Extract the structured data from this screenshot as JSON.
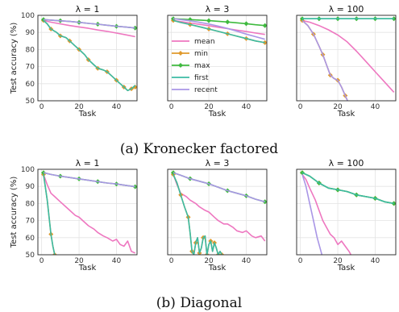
{
  "series_styles": [
    {
      "name": "mean",
      "color": "#ee77c0",
      "marker": "none"
    },
    {
      "name": "min",
      "color": "#e09a2c",
      "marker": "diamond"
    },
    {
      "name": "max",
      "color": "#3fba3f",
      "marker": "diamond"
    },
    {
      "name": "first",
      "color": "#3bbba4",
      "marker": "none"
    },
    {
      "name": "recent",
      "color": "#a996e6",
      "marker": "none"
    }
  ],
  "rows": [
    {
      "caption": "(a) Kronecker factored"
    },
    {
      "caption": "(b) Diagonal"
    }
  ],
  "chart_data": [
    {
      "type": "line",
      "row": 0,
      "col": 0,
      "title": "λ = 1",
      "xlabel": "Task",
      "ylabel": "Test accuracy (%)",
      "xlim": [
        -2,
        51
      ],
      "ylim": [
        50,
        100
      ],
      "xticks": [
        0,
        20,
        40
      ],
      "yticks": [
        50,
        60,
        70,
        80,
        90,
        100
      ],
      "grid": true,
      "legend": "none",
      "series": [
        {
          "name": "mean",
          "x": [
            1,
            5,
            10,
            15,
            20,
            25,
            30,
            35,
            40,
            45,
            50
          ],
          "y": [
            97,
            96,
            95,
            94,
            93.2,
            92.4,
            91.4,
            90.6,
            89.6,
            88.6,
            87.5
          ]
        },
        {
          "name": "min",
          "x": [
            1,
            3,
            5,
            8,
            10,
            13,
            15,
            18,
            20,
            23,
            25,
            28,
            30,
            33,
            35,
            38,
            40,
            42,
            44,
            46,
            48,
            50
          ],
          "y": [
            97,
            95,
            92,
            90,
            88,
            87,
            85,
            82,
            80,
            77,
            74,
            71,
            69,
            68,
            67,
            64,
            62,
            60,
            58,
            56,
            57,
            58
          ]
        },
        {
          "name": "max",
          "x": [
            1,
            5,
            10,
            15,
            20,
            25,
            30,
            35,
            40,
            45,
            50
          ],
          "y": [
            97.5,
            97.2,
            96.8,
            96.4,
            95.9,
            95.3,
            94.8,
            94.2,
            93.6,
            93.1,
            92.6
          ]
        },
        {
          "name": "first",
          "x": [
            1,
            3,
            5,
            8,
            10,
            13,
            15,
            18,
            20,
            23,
            25,
            28,
            30,
            33,
            35,
            38,
            40,
            42,
            44,
            46,
            48,
            50
          ],
          "y": [
            97,
            95,
            92,
            90,
            88,
            87,
            85,
            82,
            80,
            77,
            74,
            71,
            69,
            68,
            67,
            64,
            62,
            60,
            58,
            56,
            57,
            59
          ]
        },
        {
          "name": "recent",
          "x": [
            1,
            5,
            10,
            15,
            20,
            25,
            30,
            35,
            40,
            45,
            50
          ],
          "y": [
            97.5,
            97.2,
            96.8,
            96.4,
            95.9,
            95.3,
            94.8,
            94.2,
            93.6,
            93.1,
            92.6
          ]
        }
      ]
    },
    {
      "type": "line",
      "row": 0,
      "col": 1,
      "title": "λ = 3",
      "xlabel": "Task",
      "ylabel": "",
      "xlim": [
        -2,
        51
      ],
      "ylim": [
        50,
        100
      ],
      "xticks": [
        0,
        20,
        40
      ],
      "yticks": [
        50,
        60,
        70,
        80,
        90,
        100
      ],
      "grid": true,
      "legend": "center-left",
      "series": [
        {
          "name": "mean",
          "x": [
            1,
            5,
            10,
            15,
            20,
            25,
            30,
            35,
            40,
            45,
            50
          ],
          "y": [
            97,
            96.3,
            95.5,
            94.7,
            93.9,
            93,
            92.2,
            91.3,
            90.5,
            89.6,
            88.8
          ]
        },
        {
          "name": "min",
          "x": [
            1,
            5,
            10,
            15,
            20,
            25,
            30,
            35,
            40,
            45,
            50
          ],
          "y": [
            97,
            95.8,
            94.6,
            93.3,
            92,
            90.6,
            89.2,
            87.8,
            86.4,
            85,
            84
          ]
        },
        {
          "name": "max",
          "x": [
            1,
            5,
            10,
            15,
            20,
            25,
            30,
            35,
            40,
            45,
            50
          ],
          "y": [
            98,
            97.8,
            97.5,
            97.2,
            96.9,
            96.5,
            96.1,
            95.6,
            95.1,
            94.5,
            94
          ]
        },
        {
          "name": "first",
          "x": [
            1,
            5,
            10,
            15,
            20,
            25,
            30,
            35,
            40,
            45,
            50
          ],
          "y": [
            97,
            95.8,
            94.6,
            93.3,
            92,
            90.6,
            89.2,
            87.8,
            86.4,
            85,
            84
          ]
        },
        {
          "name": "recent",
          "x": [
            1,
            5,
            10,
            15,
            20,
            25,
            30,
            35,
            40,
            45,
            50
          ],
          "y": [
            98,
            97.5,
            96.8,
            95.9,
            94.9,
            93.7,
            92.3,
            90.7,
            89,
            87.5,
            86
          ]
        }
      ]
    },
    {
      "type": "line",
      "row": 0,
      "col": 2,
      "title": "λ = 100",
      "xlabel": "Task",
      "ylabel": "",
      "xlim": [
        -2,
        51
      ],
      "ylim": [
        50,
        100
      ],
      "xticks": [
        0,
        20,
        40
      ],
      "yticks": [
        50,
        60,
        70,
        80,
        90,
        100
      ],
      "grid": true,
      "legend": "none",
      "series": [
        {
          "name": "mean",
          "x": [
            1,
            5,
            10,
            15,
            20,
            25,
            30,
            35,
            40,
            45,
            50
          ],
          "y": [
            97,
            96,
            94,
            91.5,
            88.5,
            84.5,
            79,
            73,
            67,
            61,
            55
          ]
        },
        {
          "name": "min",
          "x": [
            1,
            4,
            7,
            10,
            12,
            14,
            16,
            18,
            20,
            22,
            24,
            26
          ],
          "y": [
            97,
            94,
            89,
            82,
            77,
            71,
            65,
            63,
            62,
            58,
            53,
            48
          ]
        },
        {
          "name": "max",
          "x": [
            1,
            5,
            10,
            15,
            20,
            25,
            30,
            35,
            40,
            45,
            50
          ],
          "y": [
            98,
            98,
            98,
            98,
            98,
            98,
            98,
            98,
            98,
            98,
            98
          ]
        },
        {
          "name": "first",
          "x": [
            1,
            5,
            10,
            15,
            20,
            25,
            30,
            35,
            40,
            45,
            50
          ],
          "y": [
            98,
            98,
            98,
            98,
            98,
            98,
            98,
            98,
            98,
            98,
            98
          ]
        },
        {
          "name": "recent",
          "x": [
            1,
            4,
            7,
            10,
            12,
            14,
            16,
            18,
            20,
            22,
            24,
            26
          ],
          "y": [
            97,
            94,
            89,
            82,
            77,
            71,
            65,
            63,
            62,
            58,
            53,
            48
          ]
        }
      ]
    },
    {
      "type": "line",
      "row": 1,
      "col": 0,
      "title": "λ = 1",
      "xlabel": "Task",
      "ylabel": "Test accuracy (%)",
      "xlim": [
        -2,
        51
      ],
      "ylim": [
        50,
        100
      ],
      "xticks": [
        0,
        20,
        40
      ],
      "yticks": [
        50,
        60,
        70,
        80,
        90,
        100
      ],
      "grid": true,
      "legend": "none",
      "series": [
        {
          "name": "mean",
          "x": [
            1,
            3,
            5,
            7,
            10,
            13,
            15,
            18,
            20,
            22,
            25,
            28,
            30,
            33,
            35,
            38,
            40,
            42,
            44,
            46,
            48,
            50
          ],
          "y": [
            97,
            91,
            86,
            84,
            81,
            78,
            76,
            73,
            72,
            70,
            67,
            65,
            63,
            61,
            60,
            58,
            59,
            56,
            55,
            58,
            52,
            51
          ]
        },
        {
          "name": "min",
          "x": [
            1,
            3,
            5,
            6,
            7,
            8
          ],
          "y": [
            97,
            82,
            62,
            55,
            50,
            46
          ]
        },
        {
          "name": "max",
          "x": [
            1,
            5,
            10,
            15,
            20,
            25,
            30,
            35,
            40,
            45,
            50
          ],
          "y": [
            98,
            97,
            96,
            95.2,
            94.4,
            93.6,
            92.8,
            92,
            91.4,
            90.6,
            89.8
          ]
        },
        {
          "name": "first",
          "x": [
            1,
            3,
            5,
            6,
            7,
            8
          ],
          "y": [
            97,
            82,
            62,
            55,
            50,
            46
          ]
        },
        {
          "name": "recent",
          "x": [
            1,
            5,
            10,
            15,
            20,
            25,
            30,
            35,
            40,
            45,
            50
          ],
          "y": [
            98,
            97,
            96,
            95.2,
            94.4,
            93.6,
            92.8,
            92,
            91.4,
            90.6,
            89.8
          ]
        }
      ]
    },
    {
      "type": "line",
      "row": 1,
      "col": 1,
      "title": "λ = 3",
      "xlabel": "Task",
      "ylabel": "",
      "xlim": [
        -2,
        51
      ],
      "ylim": [
        50,
        100
      ],
      "xticks": [
        0,
        20,
        40
      ],
      "yticks": [
        50,
        60,
        70,
        80,
        90,
        100
      ],
      "grid": true,
      "legend": "none",
      "series": [
        {
          "name": "mean",
          "x": [
            1,
            3,
            5,
            8,
            10,
            13,
            15,
            18,
            20,
            23,
            25,
            28,
            30,
            33,
            35,
            38,
            40,
            43,
            45,
            48,
            50
          ],
          "y": [
            97,
            91,
            86,
            84,
            82,
            80,
            78,
            76,
            75,
            72,
            70,
            68,
            68,
            66,
            64,
            63,
            64,
            61,
            60,
            61,
            58
          ]
        },
        {
          "name": "min",
          "x": [
            1,
            3,
            5,
            7,
            9,
            10,
            11,
            12,
            13,
            14,
            15,
            16,
            17,
            18,
            19,
            20,
            21,
            22,
            23,
            24,
            25,
            26,
            27
          ],
          "y": [
            97,
            92,
            85,
            78,
            72,
            63,
            52,
            50,
            57,
            60,
            51,
            54,
            60,
            61,
            50,
            56,
            58,
            52,
            57,
            54,
            50,
            52,
            50
          ]
        },
        {
          "name": "max",
          "x": [
            1,
            5,
            10,
            15,
            20,
            25,
            30,
            35,
            40,
            45,
            50
          ],
          "y": [
            98,
            96.5,
            94.5,
            93,
            91.5,
            89.5,
            87.5,
            86,
            84.5,
            82.5,
            81
          ]
        },
        {
          "name": "first",
          "x": [
            1,
            3,
            5,
            7,
            9,
            10,
            11,
            12,
            13,
            14,
            15,
            16,
            17,
            18,
            19,
            20,
            21,
            22,
            23,
            24,
            25,
            26,
            27
          ],
          "y": [
            97,
            92,
            85,
            78,
            72,
            63,
            52,
            50,
            57,
            60,
            51,
            54,
            60,
            61,
            50,
            56,
            58,
            52,
            57,
            54,
            50,
            52,
            50
          ]
        },
        {
          "name": "recent",
          "x": [
            1,
            5,
            10,
            15,
            20,
            25,
            30,
            35,
            40,
            45,
            50
          ],
          "y": [
            98,
            96.5,
            94.5,
            93,
            91.5,
            89.5,
            87.5,
            86,
            84.5,
            82.5,
            81
          ]
        }
      ]
    },
    {
      "type": "line",
      "row": 1,
      "col": 2,
      "title": "λ = 100",
      "xlabel": "Task",
      "ylabel": "",
      "xlim": [
        -2,
        51
      ],
      "ylim": [
        50,
        100
      ],
      "xticks": [
        0,
        20,
        40
      ],
      "yticks": [
        50,
        60,
        70,
        80,
        90,
        100
      ],
      "grid": true,
      "legend": "none",
      "series": [
        {
          "name": "mean",
          "x": [
            1,
            3,
            5,
            8,
            10,
            12,
            14,
            16,
            18,
            20,
            22,
            24,
            26,
            28
          ],
          "y": [
            97,
            94,
            89,
            82,
            76,
            70,
            66,
            62,
            60,
            56,
            58,
            55,
            52,
            48
          ]
        },
        {
          "name": "min",
          "x": [
            1,
            5,
            10,
            15,
            20,
            25,
            30,
            35,
            40,
            45,
            50
          ],
          "y": [
            98,
            96,
            92,
            89,
            88,
            87,
            85,
            84,
            83,
            81,
            80
          ]
        },
        {
          "name": "max",
          "x": [
            1,
            5,
            10,
            15,
            20,
            25,
            30,
            35,
            40,
            45,
            50
          ],
          "y": [
            98,
            96,
            92,
            89,
            88,
            87,
            85,
            84,
            83,
            81,
            80
          ]
        },
        {
          "name": "first",
          "x": [
            1,
            5,
            10,
            15,
            20,
            25,
            30,
            35,
            40,
            45,
            50
          ],
          "y": [
            98,
            96,
            92,
            89,
            88,
            87,
            85,
            84,
            83,
            81,
            80
          ]
        },
        {
          "name": "recent",
          "x": [
            1,
            3,
            5,
            7,
            9,
            11,
            12
          ],
          "y": [
            97,
            90,
            80,
            70,
            60,
            52,
            48
          ]
        }
      ]
    }
  ]
}
